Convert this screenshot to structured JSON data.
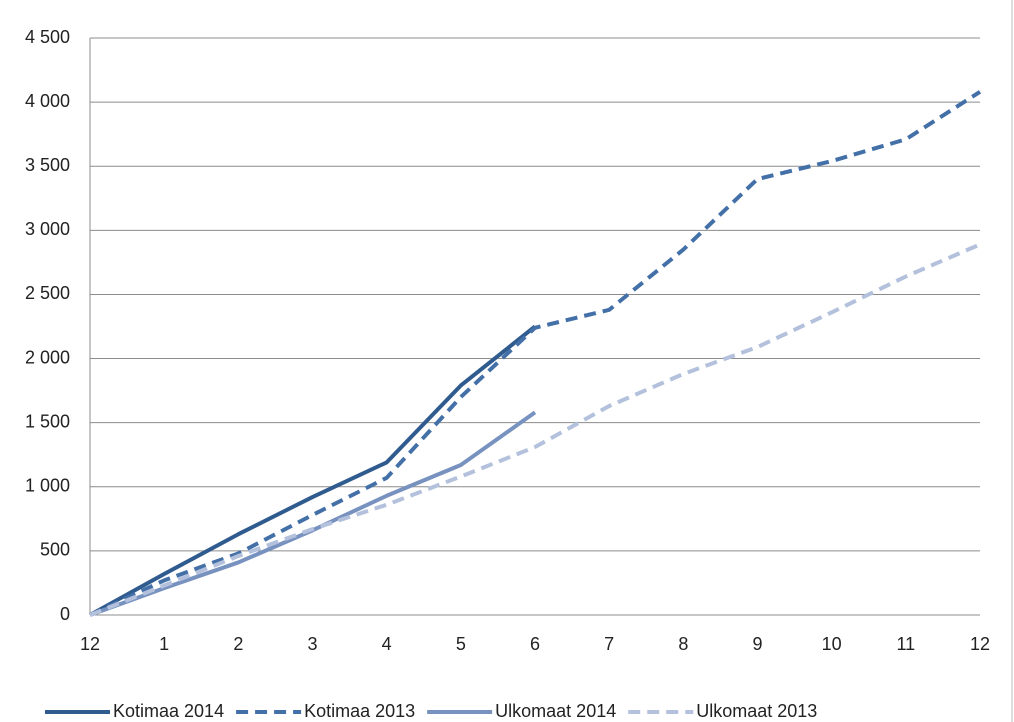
{
  "chart_data": {
    "type": "line",
    "categories": [
      "12",
      "1",
      "2",
      "3",
      "4",
      "5",
      "6",
      "7",
      "8",
      "9",
      "10",
      "11",
      "12"
    ],
    "series": [
      {
        "name": "Kotimaa 2014",
        "color": "#2f5b8f",
        "dashed": false,
        "values": [
          0,
          320,
          630,
          920,
          1190,
          1790,
          2250,
          null,
          null,
          null,
          null,
          null,
          null
        ]
      },
      {
        "name": "Kotimaa 2013",
        "color": "#4470a8",
        "dashed": true,
        "values": [
          0,
          270,
          480,
          780,
          1070,
          1700,
          2240,
          2380,
          2850,
          3400,
          3540,
          3710,
          4080
        ]
      },
      {
        "name": "Ulkomaat 2014",
        "color": "#7892c0",
        "dashed": false,
        "values": [
          0,
          210,
          410,
          660,
          930,
          1170,
          1580,
          null,
          null,
          null,
          null,
          null,
          null
        ]
      },
      {
        "name": "Ulkomaat 2013",
        "color": "#b3c1dc",
        "dashed": true,
        "values": [
          0,
          230,
          460,
          670,
          860,
          1080,
          1310,
          1630,
          1880,
          2090,
          2360,
          2640,
          2890
        ]
      }
    ],
    "ylim": [
      0,
      4500
    ],
    "yticks": [
      0,
      500,
      {
        "value": 1000,
        "label": "1 000"
      },
      {
        "value": 1500,
        "label": "1 500"
      },
      {
        "value": 2000,
        "label": "2 000"
      },
      {
        "value": 2500,
        "label": "2 500"
      },
      {
        "value": 3000,
        "label": "3 000"
      },
      {
        "value": 3500,
        "label": "3 500"
      },
      {
        "value": 4000,
        "label": "4 000"
      },
      {
        "value": 4500,
        "label": "4 500"
      }
    ],
    "grid": true,
    "legend": "bottom"
  }
}
